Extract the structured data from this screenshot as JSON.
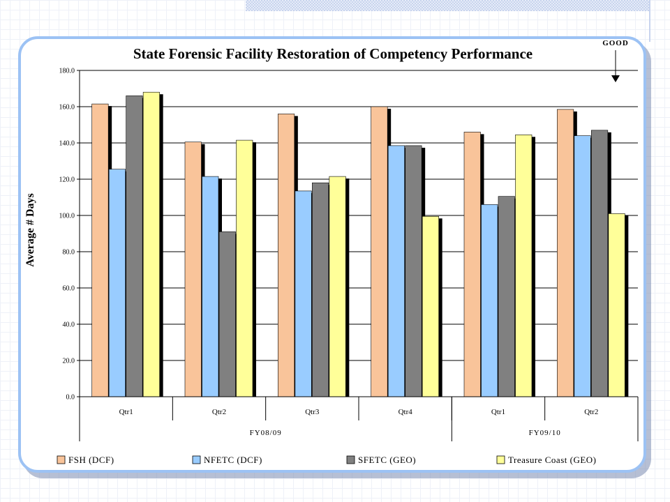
{
  "chart_data": {
    "type": "bar",
    "title": "State Forensic Facility Restoration of Competency Performance",
    "ylabel": "Average # Days",
    "ylim": [
      0,
      180
    ],
    "yticks": [
      "0.0",
      "20.0",
      "40.0",
      "60.0",
      "80.0",
      "100.0",
      "120.0",
      "140.0",
      "160.0",
      "180.0"
    ],
    "grid": true,
    "legend_position": "bottom",
    "annotation": "GOOD",
    "categories": [
      "Qtr1",
      "Qtr2",
      "Qtr3",
      "Qtr4",
      "Qtr1",
      "Qtr2"
    ],
    "groups": [
      {
        "label": "FY08/09",
        "span": 4
      },
      {
        "label": "FY09/10",
        "span": 2
      }
    ],
    "series": [
      {
        "name": "FSH (DCF)",
        "color": "#f9c49a",
        "values": [
          161.5,
          140.5,
          156.0,
          160.0,
          146.0,
          158.5
        ]
      },
      {
        "name": "NFETC (DCF)",
        "color": "#99ccff",
        "values": [
          125.5,
          121.5,
          113.5,
          138.5,
          106.0,
          144.0
        ]
      },
      {
        "name": "SFETC (GEO)",
        "color": "#808080",
        "values": [
          166.0,
          91.0,
          118.0,
          138.5,
          110.5,
          147.0
        ]
      },
      {
        "name": "Treasure Coast (GEO)",
        "color": "#ffff99",
        "values": [
          168.0,
          141.5,
          121.5,
          99.5,
          144.5,
          101.0
        ]
      }
    ]
  }
}
